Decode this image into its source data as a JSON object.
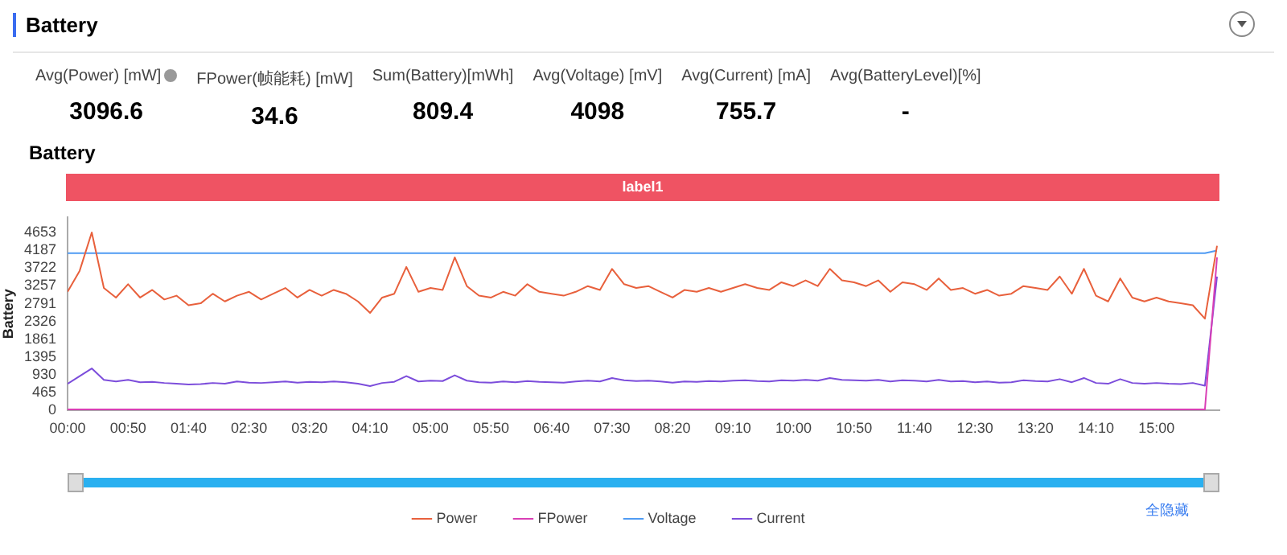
{
  "chart_data": {
    "type": "line",
    "title": "Battery",
    "subtitle": "Battery",
    "ylabel": "Battery",
    "annotations": [
      "Avg(Power) [mW]",
      "3096.6",
      "FPower(帧能耗) [mW]",
      "34.6",
      "Sum(Battery)[mWh]",
      "809.4",
      "Avg(Voltage) [mV]",
      "4098",
      "Avg(Current) [mA]",
      "755.7",
      "Avg(BatteryLevel)[%]",
      "-",
      "label1",
      "全隐藏"
    ],
    "x": [
      0,
      10,
      20,
      30,
      40,
      50,
      60,
      70,
      80,
      90,
      100,
      110,
      120,
      130,
      140,
      150,
      160,
      170,
      180,
      190,
      200,
      210,
      220,
      230,
      240,
      250,
      260,
      270,
      280,
      290,
      300,
      310,
      320,
      330,
      340,
      350,
      360,
      370,
      380,
      390,
      400,
      410,
      420,
      430,
      440,
      450,
      460,
      470,
      480,
      490,
      500,
      510,
      520,
      530,
      540,
      550,
      560,
      570,
      580,
      590,
      600,
      610,
      620,
      630,
      640,
      650,
      660,
      670,
      680,
      690,
      700,
      710,
      720,
      730,
      740,
      750,
      760,
      770,
      780,
      790,
      800,
      810,
      820,
      830,
      840,
      850,
      860,
      870,
      880,
      890,
      900,
      910,
      920,
      930,
      940,
      950
    ],
    "series": [
      {
        "name": "Power",
        "color": "#e8603c",
        "values": [
          3100,
          3650,
          4650,
          3200,
          2950,
          3300,
          2950,
          3150,
          2900,
          3000,
          2750,
          2800,
          3050,
          2850,
          3000,
          3100,
          2900,
          3050,
          3200,
          2950,
          3150,
          3000,
          3150,
          3050,
          2850,
          2550,
          2950,
          3050,
          3750,
          3100,
          3200,
          3150,
          4000,
          3250,
          3000,
          2950,
          3100,
          3000,
          3300,
          3100,
          3050,
          3000,
          3100,
          3250,
          3150,
          3700,
          3300,
          3200,
          3250,
          3100,
          2950,
          3150,
          3100,
          3200,
          3100,
          3200,
          3300,
          3200,
          3150,
          3350,
          3250,
          3400,
          3250,
          3700,
          3400,
          3350,
          3250,
          3400,
          3100,
          3350,
          3300,
          3150,
          3450,
          3150,
          3200,
          3050,
          3150,
          3000,
          3050,
          3250,
          3200,
          3150,
          3500,
          3050,
          3700,
          3000,
          2850,
          3450,
          2950,
          2850,
          2950,
          2850,
          2800,
          2750,
          2400,
          4300
        ]
      },
      {
        "name": "FPower",
        "color": "#d93fb5",
        "values": [
          30,
          30,
          30,
          30,
          30,
          30,
          30,
          30,
          30,
          30,
          30,
          30,
          30,
          30,
          30,
          30,
          30,
          30,
          30,
          30,
          30,
          30,
          30,
          30,
          30,
          30,
          30,
          30,
          30,
          30,
          30,
          30,
          30,
          30,
          30,
          30,
          30,
          30,
          30,
          30,
          30,
          30,
          30,
          30,
          30,
          30,
          30,
          30,
          30,
          30,
          30,
          30,
          30,
          30,
          30,
          30,
          30,
          30,
          30,
          30,
          30,
          30,
          30,
          30,
          30,
          30,
          30,
          30,
          30,
          30,
          30,
          30,
          30,
          30,
          30,
          30,
          30,
          30,
          30,
          30,
          30,
          30,
          30,
          30,
          30,
          30,
          30,
          30,
          30,
          30,
          30,
          30,
          30,
          30,
          30,
          4000
        ]
      },
      {
        "name": "Voltage",
        "color": "#4f9bf3",
        "values": [
          4110,
          4110,
          4110,
          4110,
          4110,
          4110,
          4110,
          4110,
          4110,
          4110,
          4110,
          4110,
          4110,
          4110,
          4110,
          4110,
          4110,
          4110,
          4110,
          4110,
          4110,
          4110,
          4110,
          4110,
          4110,
          4110,
          4110,
          4110,
          4110,
          4110,
          4110,
          4110,
          4110,
          4110,
          4110,
          4110,
          4110,
          4110,
          4110,
          4110,
          4110,
          4110,
          4110,
          4110,
          4110,
          4110,
          4110,
          4110,
          4110,
          4110,
          4110,
          4110,
          4110,
          4110,
          4110,
          4110,
          4110,
          4110,
          4110,
          4110,
          4110,
          4110,
          4110,
          4110,
          4110,
          4110,
          4110,
          4110,
          4110,
          4110,
          4110,
          4110,
          4110,
          4110,
          4110,
          4110,
          4110,
          4110,
          4110,
          4110,
          4110,
          4110,
          4110,
          4110,
          4110,
          4110,
          4110,
          4110,
          4110,
          4110,
          4110,
          4110,
          4110,
          4110,
          4110,
          4180
        ]
      },
      {
        "name": "Current",
        "color": "#7c4ddb",
        "values": [
          700,
          900,
          1100,
          800,
          760,
          800,
          740,
          750,
          720,
          700,
          680,
          690,
          720,
          700,
          760,
          730,
          720,
          740,
          760,
          730,
          750,
          740,
          760,
          740,
          700,
          640,
          720,
          750,
          900,
          760,
          780,
          770,
          920,
          780,
          740,
          730,
          760,
          740,
          770,
          750,
          740,
          730,
          760,
          780,
          760,
          850,
          790,
          770,
          780,
          760,
          730,
          760,
          750,
          770,
          760,
          780,
          790,
          770,
          760,
          790,
          780,
          800,
          780,
          850,
          800,
          790,
          780,
          800,
          760,
          790,
          780,
          760,
          800,
          760,
          770,
          740,
          760,
          730,
          740,
          790,
          770,
          760,
          820,
          740,
          850,
          720,
          700,
          820,
          720,
          700,
          720,
          700,
          690,
          720,
          650,
          3500
        ]
      }
    ],
    "xlim": [
      0,
      952
    ],
    "xticks": [
      {
        "value": 0,
        "label": "00:00"
      },
      {
        "value": 50,
        "label": "00:50"
      },
      {
        "value": 100,
        "label": "01:40"
      },
      {
        "value": 150,
        "label": "02:30"
      },
      {
        "value": 200,
        "label": "03:20"
      },
      {
        "value": 250,
        "label": "04:10"
      },
      {
        "value": 300,
        "label": "05:00"
      },
      {
        "value": 350,
        "label": "05:50"
      },
      {
        "value": 400,
        "label": "06:40"
      },
      {
        "value": 450,
        "label": "07:30"
      },
      {
        "value": 500,
        "label": "08:20"
      },
      {
        "value": 550,
        "label": "09:10"
      },
      {
        "value": 600,
        "label": "10:00"
      },
      {
        "value": 650,
        "label": "10:50"
      },
      {
        "value": 700,
        "label": "11:40"
      },
      {
        "value": 750,
        "label": "12:30"
      },
      {
        "value": 800,
        "label": "13:20"
      },
      {
        "value": 850,
        "label": "14:10"
      },
      {
        "value": 900,
        "label": "15:00"
      }
    ],
    "ylim": [
      0,
      5050
    ],
    "yticks": [
      0,
      465,
      930,
      1395,
      1861,
      2326,
      2791,
      3257,
      3722,
      4187,
      4653
    ],
    "legend": "bottom",
    "marker": "none",
    "line_style": "solid"
  }
}
